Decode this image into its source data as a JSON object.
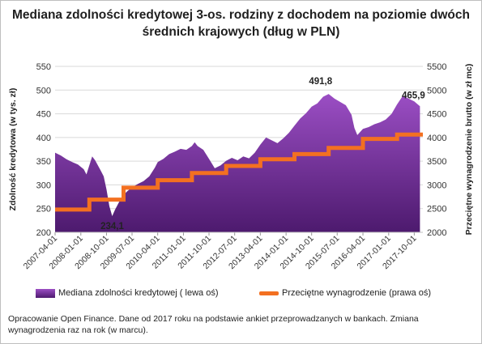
{
  "chart_data": {
    "type": "area",
    "title": "Mediana zdolności kredytowej 3-os. rodziny z dochodem na poziomie dwóch średnich krajowych (dług w PLN)",
    "ylabel": "Zdolność kredytowa (w tys. zł)",
    "y2label": "Przeciętne wynagrodzenie brutto (w zł mc)",
    "ylim": [
      200,
      550
    ],
    "y2lim": [
      2000,
      5500
    ],
    "yticks": [
      "200",
      "250",
      "300",
      "350",
      "400",
      "450",
      "500",
      "550"
    ],
    "y2ticks": [
      "2000",
      "2500",
      "3000",
      "3500",
      "4000",
      "4500",
      "5000",
      "5500"
    ],
    "xticks": [
      "2007-04-01",
      "2008-01-01",
      "2008-10-01",
      "2009-07-01",
      "2010-04-01",
      "2011-01-01",
      "2011-10-01",
      "2012-07-01",
      "2013-04-01",
      "2014-01-01",
      "2014-10-01",
      "2015-07-01",
      "2016-04-01",
      "2017-01-01",
      "2017-10-01"
    ],
    "xrange": [
      "2007-04-01",
      "2018-01-01"
    ],
    "series": [
      {
        "name": "Mediana zdolności kredytowej ( lewa oś)",
        "color_top": "#9b4ec4",
        "color_bottom": "#4d1a6e",
        "points": [
          [
            "2007-04-01",
            368
          ],
          [
            "2007-06-01",
            362
          ],
          [
            "2007-08-01",
            354
          ],
          [
            "2007-10-01",
            348
          ],
          [
            "2007-12-01",
            343
          ],
          [
            "2008-02-01",
            333
          ],
          [
            "2008-03-01",
            322
          ],
          [
            "2008-05-01",
            360
          ],
          [
            "2008-06-01",
            352
          ],
          [
            "2008-08-01",
            330
          ],
          [
            "2008-09-01",
            318
          ],
          [
            "2008-10-01",
            290
          ],
          [
            "2008-11-01",
            255
          ],
          [
            "2008-12-01",
            234.1
          ],
          [
            "2009-01-01",
            248
          ],
          [
            "2009-03-01",
            270
          ],
          [
            "2009-05-01",
            285
          ],
          [
            "2009-07-01",
            295
          ],
          [
            "2009-09-01",
            302
          ],
          [
            "2009-11-01",
            308
          ],
          [
            "2010-01-01",
            318
          ],
          [
            "2010-03-01",
            336
          ],
          [
            "2010-04-01",
            348
          ],
          [
            "2010-06-01",
            355
          ],
          [
            "2010-08-01",
            365
          ],
          [
            "2010-10-01",
            370
          ],
          [
            "2010-12-01",
            376
          ],
          [
            "2011-02-01",
            374
          ],
          [
            "2011-04-01",
            382
          ],
          [
            "2011-05-01",
            390
          ],
          [
            "2011-06-01",
            382
          ],
          [
            "2011-08-01",
            374
          ],
          [
            "2011-10-01",
            355
          ],
          [
            "2011-12-01",
            335
          ],
          [
            "2012-02-01",
            341
          ],
          [
            "2012-04-01",
            351
          ],
          [
            "2012-06-01",
            357
          ],
          [
            "2012-08-01",
            352
          ],
          [
            "2012-10-01",
            360
          ],
          [
            "2012-12-01",
            356
          ],
          [
            "2013-02-01",
            368
          ],
          [
            "2013-04-01",
            385
          ],
          [
            "2013-06-01",
            400
          ],
          [
            "2013-08-01",
            394
          ],
          [
            "2013-10-01",
            388
          ],
          [
            "2013-12-01",
            398
          ],
          [
            "2014-02-01",
            410
          ],
          [
            "2014-04-01",
            425
          ],
          [
            "2014-06-01",
            440
          ],
          [
            "2014-08-01",
            451
          ],
          [
            "2014-10-01",
            465
          ],
          [
            "2014-12-01",
            472
          ],
          [
            "2015-02-01",
            486
          ],
          [
            "2015-04-01",
            491.8
          ],
          [
            "2015-06-01",
            482
          ],
          [
            "2015-08-01",
            475
          ],
          [
            "2015-10-01",
            468
          ],
          [
            "2015-12-01",
            448
          ],
          [
            "2016-01-01",
            420
          ],
          [
            "2016-02-01",
            405
          ],
          [
            "2016-04-01",
            418
          ],
          [
            "2016-06-01",
            422
          ],
          [
            "2016-08-01",
            428
          ],
          [
            "2016-10-01",
            432
          ],
          [
            "2016-12-01",
            438
          ],
          [
            "2017-02-01",
            450
          ],
          [
            "2017-04-01",
            470
          ],
          [
            "2017-06-01",
            488
          ],
          [
            "2017-08-01",
            482
          ],
          [
            "2017-10-01",
            476
          ],
          [
            "2017-12-01",
            465.9
          ]
        ]
      },
      {
        "name": "Przeciętne wynagrodzenie (prawa oś)",
        "color": "#f37021",
        "steps": [
          [
            "2007-04-01",
            2480
          ],
          [
            "2008-04-01",
            2690
          ],
          [
            "2009-04-01",
            2940
          ],
          [
            "2010-04-01",
            3100
          ],
          [
            "2011-04-01",
            3250
          ],
          [
            "2012-04-01",
            3400
          ],
          [
            "2013-04-01",
            3540
          ],
          [
            "2014-04-01",
            3650
          ],
          [
            "2015-04-01",
            3780
          ],
          [
            "2016-04-01",
            3970
          ],
          [
            "2017-04-01",
            4060
          ],
          [
            "2018-01-01",
            4060
          ]
        ]
      }
    ],
    "annotations": [
      {
        "text": "234,1",
        "date": "2008-12-01",
        "value": 234.1
      },
      {
        "text": "491,8",
        "date": "2015-04-01",
        "value": 491.8
      },
      {
        "text": "465,9",
        "date": "2017-12-01",
        "value": 465.9
      }
    ],
    "grid": true,
    "legend_position": "bottom"
  },
  "legend": {
    "area_label": "Mediana zdolności kredytowej ( lewa oś)",
    "line_label": "Przeciętne wynagrodzenie (prawa oś)"
  },
  "note": "Opracowanie Open Finance. Dane od 2017 roku na podstawie ankiet przeprowadzanych w bankach.  Zmiana wynagrodzenia raz na rok (w marcu)."
}
